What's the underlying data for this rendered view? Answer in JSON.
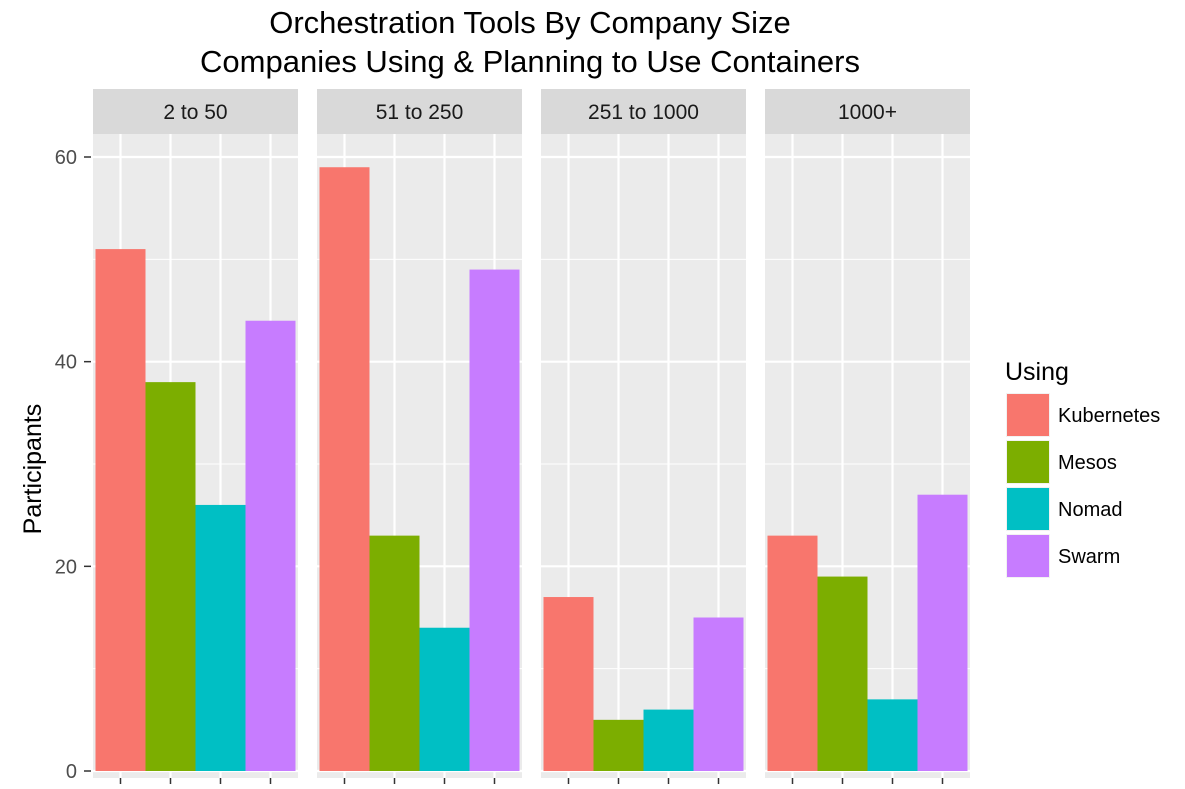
{
  "chart_data": {
    "type": "bar",
    "title": "Orchestration Tools By Company Size",
    "subtitle": "Companies Using & Planning to Use Containers",
    "xlabel": "",
    "ylabel": "Participants",
    "ylim": [
      0,
      62
    ],
    "yticks": [
      0,
      20,
      40,
      60
    ],
    "grid": true,
    "legend": {
      "title": "Using",
      "placement": "right",
      "entries": [
        "Kubernetes",
        "Mesos",
        "Nomad",
        "Swarm"
      ]
    },
    "colors": {
      "Kubernetes": "#F8766D",
      "Mesos": "#7CAE00",
      "Nomad": "#00BFC4",
      "Swarm": "#C77CFF",
      "panel_background": "#EBEBEB",
      "strip_background": "#D9D9D9",
      "grid": "#FFFFFF"
    },
    "facets": [
      {
        "label": "2 to 50",
        "values": {
          "Kubernetes": 51,
          "Mesos": 38,
          "Nomad": 26,
          "Swarm": 44
        }
      },
      {
        "label": "51 to 250",
        "values": {
          "Kubernetes": 59,
          "Mesos": 23,
          "Nomad": 14,
          "Swarm": 49
        }
      },
      {
        "label": "251 to 1000",
        "values": {
          "Kubernetes": 17,
          "Mesos": 5,
          "Nomad": 6,
          "Swarm": 15
        }
      },
      {
        "label": "1000+",
        "values": {
          "Kubernetes": 23,
          "Mesos": 19,
          "Nomad": 7,
          "Swarm": 27
        }
      }
    ]
  }
}
